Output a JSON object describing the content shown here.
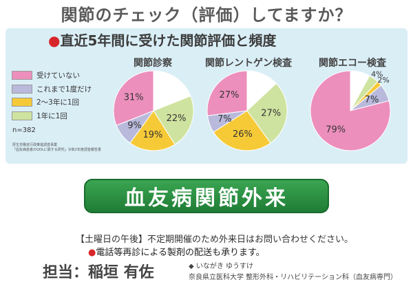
{
  "header": {
    "title": "関節のチェック（評価）してますか？"
  },
  "panel": {
    "bullet": "●",
    "title": "直近5年間に受けた関節評価と頻度",
    "sample": "n=382",
    "source_line1": "厚生労働省行政推進調査事業",
    "source_line2": "「血友病患者のQOLに関する研究」令和2年度調査報告書"
  },
  "legend": [
    {
      "label": "受けていない",
      "color": "#ec8fbd"
    },
    {
      "label": "これまで1度だけ",
      "color": "#b9b9dc"
    },
    {
      "label": "2〜3年に1回",
      "color": "#f6ca37"
    },
    {
      "label": "1年に1回",
      "color": "#cfe3a0"
    }
  ],
  "chart_data": [
    {
      "type": "pie",
      "title": "関節診察",
      "slice_colors": [
        "#ffffff",
        "#cfe3a0",
        "#f6ca37",
        "#b9b9dc",
        "#ec8fbd"
      ],
      "values": [
        19,
        22,
        19,
        9,
        31
      ],
      "labels": [
        "",
        "22%",
        "19%",
        "9%",
        "31%"
      ]
    },
    {
      "type": "pie",
      "title": "関節レントゲン検査",
      "slice_colors": [
        "#ffffff",
        "#cfe3a0",
        "#f6ca37",
        "#b9b9dc",
        "#ec8fbd"
      ],
      "values": [
        13,
        27,
        26,
        7,
        27
      ],
      "labels": [
        "",
        "27%",
        "26%",
        "7%",
        "27%"
      ]
    },
    {
      "type": "pie",
      "title": "関節エコー検査",
      "slice_colors": [
        "#ffffff",
        "#cfe3a0",
        "#f6ca37",
        "#b9b9dc",
        "#ec8fbd"
      ],
      "values": [
        8,
        4,
        2,
        7,
        79
      ],
      "labels": [
        "",
        "4%",
        "2%",
        "7%",
        "79%"
      ]
    }
  ],
  "banner": {
    "text": "血友病関節外来"
  },
  "info": {
    "line1": "【土曜日の午後】不定期開催のため外来日はお問い合わせください。",
    "bullet": "●",
    "line2": "電話等再診による製剤の配送も承ります。"
  },
  "staff": {
    "title": "担当：稲垣 有佐",
    "reading": "◆ いながき ゆうすけ",
    "affiliation": "奈良県立医科大学 整形外科・リハビリテーション科（血友病専門）"
  }
}
